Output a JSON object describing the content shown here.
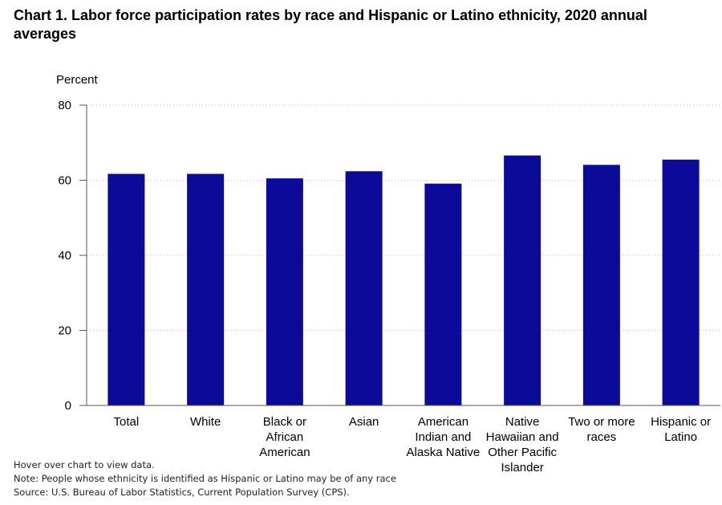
{
  "chart_data": {
    "type": "bar",
    "title": "Chart 1. Labor force participation rates by race and Hispanic or Latino ethnicity, 2020 annual averages",
    "ylabel": "Percent",
    "xlabel": "",
    "ylim": [
      0,
      80
    ],
    "yticks": [
      0,
      20,
      40,
      60,
      80
    ],
    "grid": true,
    "categories": [
      [
        "Total"
      ],
      [
        "White"
      ],
      [
        "Black or",
        "African",
        "American"
      ],
      [
        "Asian"
      ],
      [
        "American",
        "Indian and",
        "Alaska Native"
      ],
      [
        "Native",
        "Hawaiian and",
        "Other Pacific",
        "Islander"
      ],
      [
        "Two or more",
        "races"
      ],
      [
        "Hispanic or",
        "Latino"
      ]
    ],
    "values": [
      61.7,
      61.7,
      60.5,
      62.4,
      59.1,
      66.6,
      64.1,
      65.5
    ],
    "colors": {
      "bar": "#0b0a99",
      "grid": "#bbbbbb",
      "axis": "#555555"
    }
  },
  "notes": [
    "Hover over chart to view data.",
    "Note: People whose ethnicity is identified as Hispanic or Latino may be of any race",
    "Source: U.S. Bureau of Labor Statistics, Current Population Survey (CPS)."
  ]
}
